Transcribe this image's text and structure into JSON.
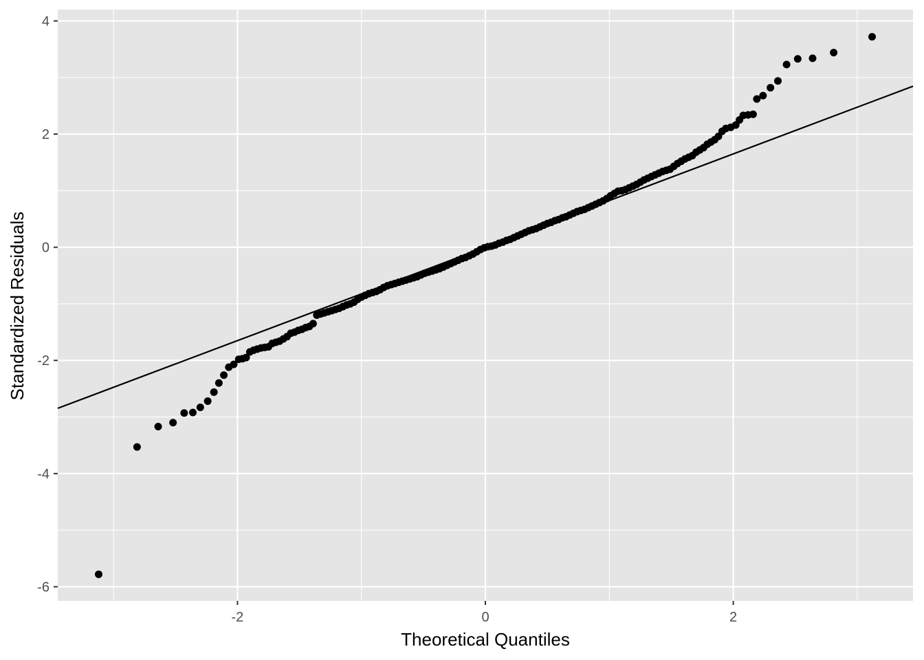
{
  "chart_data": {
    "type": "scatter",
    "subtype": "qq-plot",
    "title": "",
    "xlabel": "Theoretical Quantiles",
    "ylabel": "Standardized Residuals",
    "xlim": [
      -3.45,
      3.45
    ],
    "ylim": [
      -6.25,
      4.2
    ],
    "x_ticks": [
      -2,
      0,
      2
    ],
    "x_tick_labels": [
      "-2",
      "0",
      "2"
    ],
    "y_ticks": [
      -6,
      -4,
      -2,
      0,
      2,
      4
    ],
    "y_tick_labels": [
      "-6",
      "-4",
      "-2",
      "0",
      "2",
      "4"
    ],
    "grid": true,
    "legend": "none",
    "colors": {
      "panel": "#e5e5e5",
      "grid": "#ffffff",
      "points": "#000000",
      "line": "#000000"
    },
    "reference_line": {
      "intercept": 0.0,
      "slope": 0.825
    },
    "series": [
      {
        "points": [
          [
            -3.12,
            -5.78
          ],
          [
            -2.81,
            -3.53
          ],
          [
            -2.64,
            -3.17
          ],
          [
            -2.52,
            -3.1
          ],
          [
            -2.43,
            -2.93
          ],
          [
            -2.36,
            -2.92
          ],
          [
            -2.3,
            -2.83
          ],
          [
            -2.24,
            -2.72
          ],
          [
            -2.19,
            -2.56
          ],
          [
            -2.15,
            -2.4
          ],
          [
            -2.11,
            -2.26
          ],
          [
            -2.07,
            -2.12
          ],
          [
            -2.03,
            -2.07
          ],
          [
            -1.99,
            -1.98
          ],
          [
            -1.96,
            -1.97
          ],
          [
            -1.93,
            -1.95
          ],
          [
            -1.9,
            -1.85
          ],
          [
            -1.87,
            -1.82
          ],
          [
            -1.84,
            -1.8
          ],
          [
            -1.81,
            -1.78
          ],
          [
            -1.78,
            -1.77
          ],
          [
            -1.75,
            -1.76
          ],
          [
            -1.72,
            -1.7
          ],
          [
            -1.69,
            -1.68
          ],
          [
            -1.66,
            -1.66
          ],
          [
            -1.63,
            -1.62
          ],
          [
            -1.6,
            -1.58
          ],
          [
            -1.57,
            -1.52
          ],
          [
            -1.54,
            -1.5
          ],
          [
            -1.51,
            -1.47
          ],
          [
            -1.48,
            -1.45
          ],
          [
            -1.45,
            -1.42
          ],
          [
            -1.42,
            -1.4
          ],
          [
            -1.39,
            -1.35
          ],
          [
            -1.36,
            -1.2
          ],
          [
            -1.33,
            -1.18
          ],
          [
            -1.3,
            -1.16
          ],
          [
            -1.27,
            -1.14
          ],
          [
            -1.24,
            -1.12
          ],
          [
            -1.21,
            -1.1
          ],
          [
            -1.18,
            -1.08
          ],
          [
            -1.15,
            -1.05
          ],
          [
            -1.12,
            -1.02
          ],
          [
            -1.09,
            -1.0
          ],
          [
            -1.06,
            -0.97
          ],
          [
            -1.03,
            -0.92
          ],
          [
            -1.0,
            -0.88
          ],
          [
            -0.97,
            -0.85
          ],
          [
            -0.94,
            -0.82
          ],
          [
            -0.91,
            -0.8
          ],
          [
            -0.88,
            -0.78
          ],
          [
            -0.85,
            -0.75
          ],
          [
            -0.82,
            -0.71
          ],
          [
            -0.79,
            -0.68
          ],
          [
            -0.76,
            -0.66
          ],
          [
            -0.73,
            -0.64
          ],
          [
            -0.7,
            -0.62
          ],
          [
            -0.67,
            -0.6
          ],
          [
            -0.64,
            -0.58
          ],
          [
            -0.61,
            -0.56
          ],
          [
            -0.58,
            -0.54
          ],
          [
            -0.55,
            -0.52
          ],
          [
            -0.52,
            -0.49
          ],
          [
            -0.49,
            -0.46
          ],
          [
            -0.46,
            -0.44
          ],
          [
            -0.43,
            -0.42
          ],
          [
            -0.4,
            -0.4
          ],
          [
            -0.37,
            -0.38
          ],
          [
            -0.34,
            -0.35
          ],
          [
            -0.31,
            -0.32
          ],
          [
            -0.28,
            -0.29
          ],
          [
            -0.25,
            -0.26
          ],
          [
            -0.22,
            -0.23
          ],
          [
            -0.19,
            -0.2
          ],
          [
            -0.16,
            -0.18
          ],
          [
            -0.13,
            -0.15
          ],
          [
            -0.1,
            -0.12
          ],
          [
            -0.07,
            -0.08
          ],
          [
            -0.04,
            -0.04
          ],
          [
            -0.01,
            -0.01
          ],
          [
            0.02,
            0.01
          ],
          [
            0.05,
            0.02
          ],
          [
            0.08,
            0.04
          ],
          [
            0.11,
            0.07
          ],
          [
            0.14,
            0.09
          ],
          [
            0.17,
            0.12
          ],
          [
            0.2,
            0.14
          ],
          [
            0.23,
            0.17
          ],
          [
            0.26,
            0.2
          ],
          [
            0.29,
            0.23
          ],
          [
            0.32,
            0.26
          ],
          [
            0.35,
            0.29
          ],
          [
            0.38,
            0.31
          ],
          [
            0.41,
            0.33
          ],
          [
            0.44,
            0.36
          ],
          [
            0.47,
            0.39
          ],
          [
            0.5,
            0.42
          ],
          [
            0.53,
            0.44
          ],
          [
            0.56,
            0.47
          ],
          [
            0.59,
            0.49
          ],
          [
            0.62,
            0.52
          ],
          [
            0.65,
            0.54
          ],
          [
            0.68,
            0.57
          ],
          [
            0.71,
            0.6
          ],
          [
            0.74,
            0.63
          ],
          [
            0.77,
            0.65
          ],
          [
            0.8,
            0.67
          ],
          [
            0.83,
            0.7
          ],
          [
            0.86,
            0.73
          ],
          [
            0.89,
            0.76
          ],
          [
            0.92,
            0.79
          ],
          [
            0.95,
            0.82
          ],
          [
            0.98,
            0.86
          ],
          [
            1.01,
            0.91
          ],
          [
            1.04,
            0.95
          ],
          [
            1.07,
            0.99
          ],
          [
            1.1,
            1.0
          ],
          [
            1.13,
            1.02
          ],
          [
            1.16,
            1.05
          ],
          [
            1.19,
            1.08
          ],
          [
            1.22,
            1.11
          ],
          [
            1.25,
            1.15
          ],
          [
            1.28,
            1.19
          ],
          [
            1.31,
            1.22
          ],
          [
            1.34,
            1.25
          ],
          [
            1.37,
            1.28
          ],
          [
            1.4,
            1.31
          ],
          [
            1.43,
            1.34
          ],
          [
            1.46,
            1.36
          ],
          [
            1.49,
            1.38
          ],
          [
            1.52,
            1.43
          ],
          [
            1.55,
            1.48
          ],
          [
            1.58,
            1.52
          ],
          [
            1.61,
            1.56
          ],
          [
            1.64,
            1.59
          ],
          [
            1.67,
            1.62
          ],
          [
            1.7,
            1.68
          ],
          [
            1.73,
            1.72
          ],
          [
            1.76,
            1.76
          ],
          [
            1.79,
            1.82
          ],
          [
            1.82,
            1.86
          ],
          [
            1.85,
            1.9
          ],
          [
            1.88,
            1.96
          ],
          [
            1.91,
            2.05
          ],
          [
            1.94,
            2.1
          ],
          [
            1.98,
            2.12
          ],
          [
            2.02,
            2.16
          ],
          [
            2.05,
            2.25
          ],
          [
            2.08,
            2.33
          ],
          [
            2.12,
            2.34
          ],
          [
            2.16,
            2.35
          ],
          [
            2.19,
            2.62
          ],
          [
            2.24,
            2.68
          ],
          [
            2.3,
            2.82
          ],
          [
            2.36,
            2.94
          ],
          [
            2.43,
            3.23
          ],
          [
            2.52,
            3.33
          ],
          [
            2.64,
            3.34
          ],
          [
            2.81,
            3.44
          ],
          [
            3.12,
            3.72
          ]
        ]
      }
    ]
  }
}
